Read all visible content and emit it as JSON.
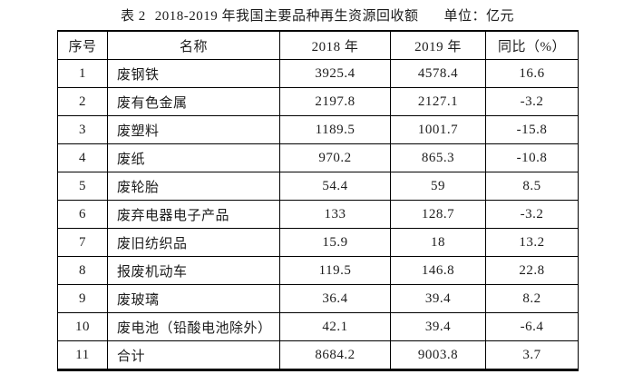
{
  "title": {
    "label": "表 2",
    "caption": "2018-2019 年我国主要品种再生资源回收额",
    "unit": "单位：亿元"
  },
  "table": {
    "columns": [
      "序号",
      "名称",
      "2018 年",
      "2019 年",
      "同比（%）"
    ],
    "rows": [
      [
        "1",
        "废钢铁",
        "3925.4",
        "4578.4",
        "16.6"
      ],
      [
        "2",
        "废有色金属",
        "2197.8",
        "2127.1",
        "-3.2"
      ],
      [
        "3",
        "废塑料",
        "1189.5",
        "1001.7",
        "-15.8"
      ],
      [
        "4",
        "废纸",
        "970.2",
        "865.3",
        "-10.8"
      ],
      [
        "5",
        "废轮胎",
        "54.4",
        "59",
        "8.5"
      ],
      [
        "6",
        "废弃电器电子产品",
        "133",
        "128.7",
        "-3.2"
      ],
      [
        "7",
        "废旧纺织品",
        "15.9",
        "18",
        "13.2"
      ],
      [
        "8",
        "报废机动车",
        "119.5",
        "146.8",
        "22.8"
      ],
      [
        "9",
        "废玻璃",
        "36.4",
        "39.4",
        "8.2"
      ],
      [
        "10",
        "废电池（铅酸电池除外）",
        "42.1",
        "39.4",
        "-6.4"
      ],
      [
        "11",
        "合计",
        "8684.2",
        "9003.8",
        "3.7"
      ]
    ]
  }
}
